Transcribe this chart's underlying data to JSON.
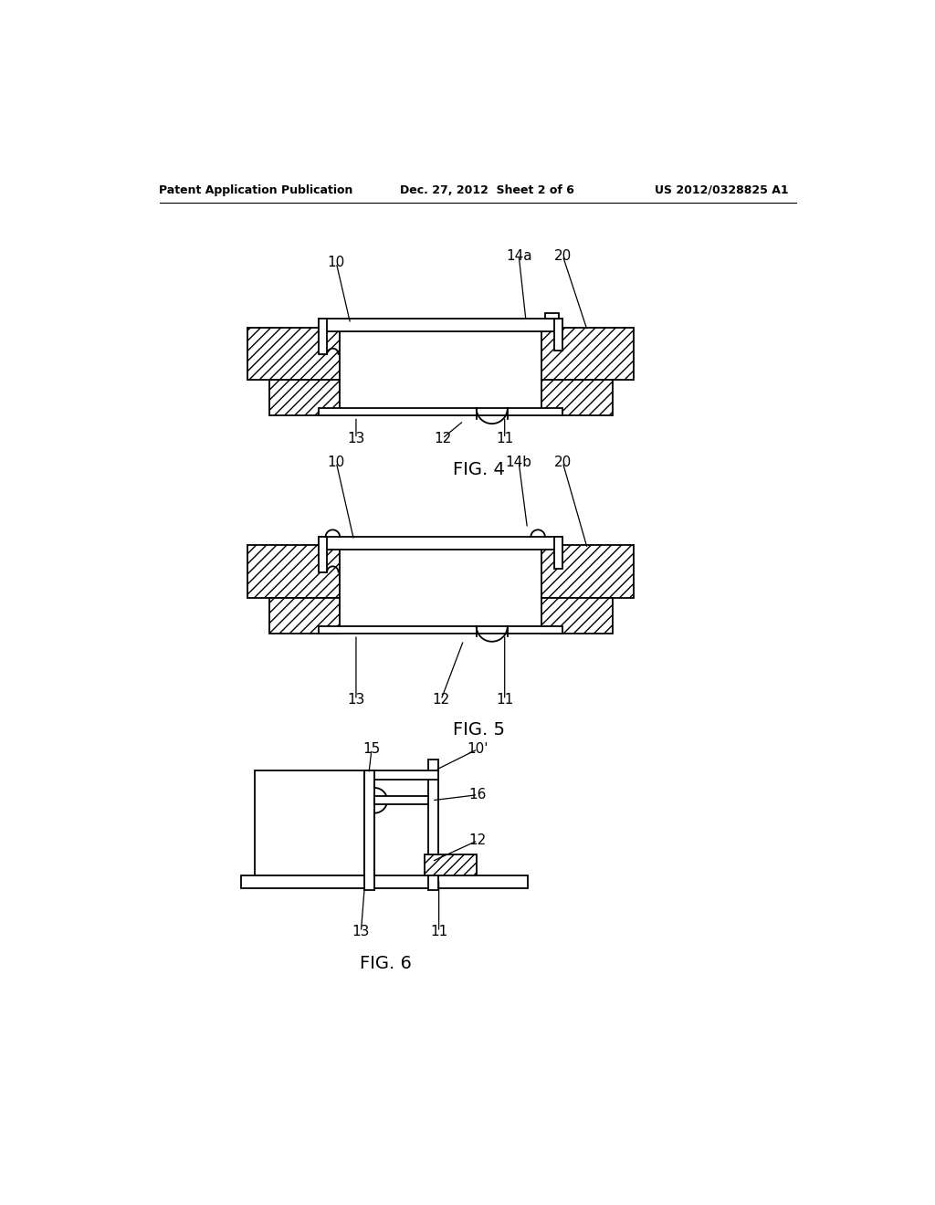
{
  "header_left": "Patent Application Publication",
  "header_mid": "Dec. 27, 2012  Sheet 2 of 6",
  "header_right": "US 2012/0328825 A1",
  "fig4_label": "FIG. 4",
  "fig5_label": "FIG. 5",
  "fig6_label": "FIG. 6",
  "background_color": "#ffffff",
  "line_color": "#000000",
  "lw": 1.3
}
